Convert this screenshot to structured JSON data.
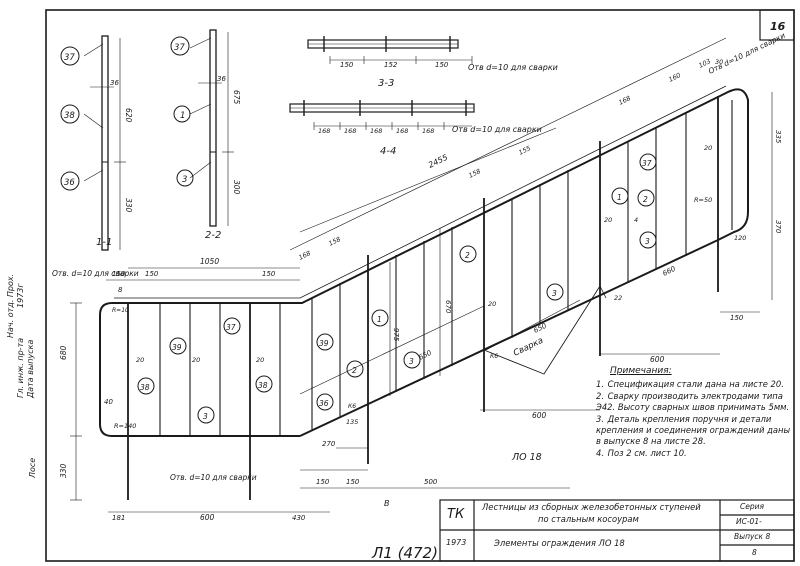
{
  "sheet": {
    "number": "16"
  },
  "sections": {
    "s11": "1-1",
    "s22": "2-2",
    "s33": "3-3",
    "s44": "4-4"
  },
  "callouts": {
    "p37": "37",
    "p38": "38",
    "p36": "36",
    "p1": "1",
    "p3": "3",
    "p2": "2",
    "p39": "39"
  },
  "dims": {
    "d36": "36",
    "d620": "620",
    "d330": "330",
    "d675": "675",
    "d300": "300",
    "d150": "150",
    "d152": "152",
    "d168": "168",
    "d158": "158",
    "d155": "155",
    "d2455": "2455",
    "d1050": "1050",
    "d8": "8",
    "d40": "40",
    "d670": "670",
    "d975": "975",
    "d650": "650",
    "d600": "600",
    "d270": "270",
    "d500": "500",
    "d181": "181",
    "d20": "20",
    "d4": "4",
    "d22": "22",
    "d335": "335",
    "d370": "370",
    "d120": "120",
    "d135": "135",
    "d680": "680",
    "d430": "430",
    "d160": "160",
    "d103": "103",
    "d660": "660",
    "d30": "30"
  },
  "labels": {
    "hole_top": "Отв d=10 для сварки",
    "hole_33": "Отв d=10 для сварки",
    "hole_44": "Отв d=10 для сварки",
    "hole_left": "Отв. d=10 для сварки",
    "hole_bottom": "Отв. d=10 для сварки",
    "weld": "Сварка",
    "r10": "R=10",
    "r140": "R=140",
    "r50": "R=50",
    "k6": "К6",
    "mark": "ЛО 18",
    "cut": "В"
  },
  "notes": {
    "title": "Примечания:",
    "items": [
      {
        "n": "1.",
        "text": "Спецификация стали дана на листе 20."
      },
      {
        "n": "2.",
        "text": "Сварку производить электродами типа Э42. Высоту сварных швов принимать 5мм."
      },
      {
        "n": "3.",
        "text": "Деталь крепления поручня и детали крепления и соединения ограждений даны в выпуске 8 на листе 28."
      },
      {
        "n": "4.",
        "text": "Поз 2 см. лист 10."
      }
    ]
  },
  "title_block": {
    "code": "ТК",
    "year": "1973",
    "title_line1": "Лестницы из сборных железобетонных ступеней",
    "title_line2": "по стальным косоурам",
    "subtitle": "Элементы ограждения ЛО 18",
    "series_label": "Серия",
    "series_value": "ИС-01-",
    "issue": "Выпуск 8",
    "sheet": "8",
    "archive": "Л1 (472)"
  },
  "side_stamp": {
    "line1": "Нач. отд. Прох.",
    "line2": "Гл. инж. пр-та",
    "line3": "Дата выпуска",
    "line4": "1973г",
    "line5": "Лосе"
  }
}
